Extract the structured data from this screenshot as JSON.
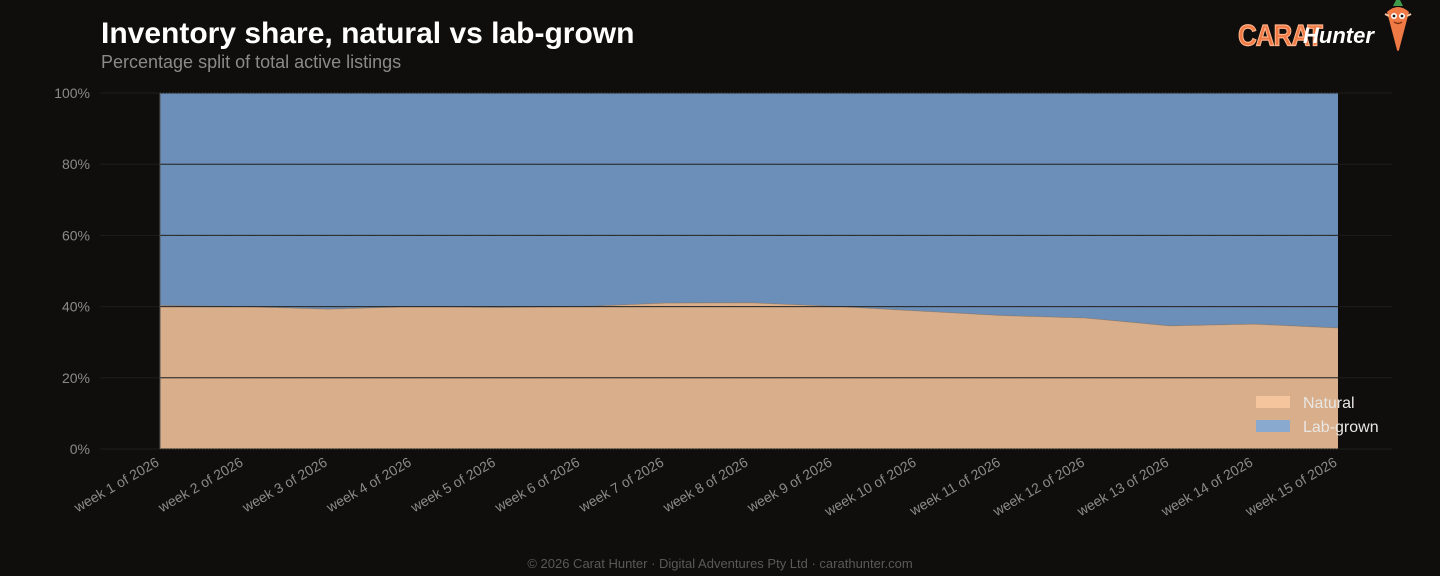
{
  "header": {
    "title": "Inventory share, natural vs lab-grown",
    "subtitle": "Percentage split of total active listings"
  },
  "brand": {
    "word1": "CARAT",
    "word2": "Hunter",
    "accent_color": "#f07a45"
  },
  "footer": {
    "text": "© 2026 Carat Hunter · Digital Adventures Pty Ltd · carathunter.com"
  },
  "chart_data": {
    "type": "area",
    "stacked": true,
    "normalized": true,
    "categories": [
      "week 1 of 2026",
      "week 2 of 2026",
      "week 3 of 2026",
      "week 4 of 2026",
      "week 5 of 2026",
      "week 6 of 2026",
      "week 7 of 2026",
      "week 8 of 2026",
      "week 9 of 2026",
      "week 10 of 2026",
      "week 11 of 2026",
      "week 12 of 2026",
      "week 13 of 2026",
      "week 14 of 2026",
      "week 15 of 2026"
    ],
    "series": [
      {
        "name": "Natural",
        "color": "#d8ae8b",
        "legend_color": "#f5c59e",
        "values": [
          40.3,
          40.0,
          39.3,
          40.0,
          39.8,
          40.0,
          41.0,
          41.1,
          40.1,
          38.8,
          37.5,
          36.8,
          34.6,
          35.1,
          34.0
        ]
      },
      {
        "name": "Lab-grown",
        "color": "#6b8fb8",
        "legend_color": "#8aa9cf",
        "values": [
          59.7,
          60.0,
          60.7,
          60.0,
          60.2,
          60.0,
          59.0,
          58.9,
          59.9,
          61.2,
          62.5,
          63.2,
          65.4,
          64.9,
          66.0
        ]
      }
    ],
    "y_ticks": [
      "0%",
      "20%",
      "40%",
      "60%",
      "80%",
      "100%"
    ],
    "ylim": [
      0,
      100
    ],
    "grid": true,
    "legend_position": "bottom-right"
  }
}
